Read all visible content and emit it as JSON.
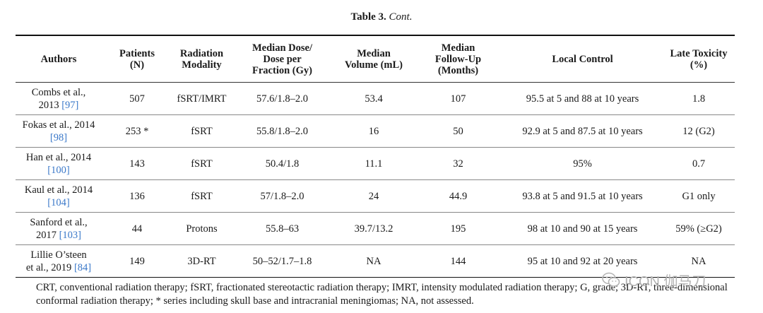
{
  "caption": {
    "label": "Table 3.",
    "cont": "Cont."
  },
  "header": {
    "authors": [
      "Authors"
    ],
    "patients": [
      "Patients",
      "(N)"
    ],
    "modality": [
      "Radiation",
      "Modality"
    ],
    "dose": [
      "Median Dose/",
      "Dose per",
      "Fraction (Gy)"
    ],
    "volume": [
      "Median",
      "Volume (mL)"
    ],
    "followup": [
      "Median",
      "Follow-Up",
      "(Months)"
    ],
    "control": [
      "Local Control"
    ],
    "toxicity": [
      "Late Toxicity",
      "(%)"
    ]
  },
  "rows": [
    {
      "author": [
        "Combs et al.,",
        "2013 "
      ],
      "ref": "[97]",
      "patients": "507",
      "modality": "fSRT/IMRT",
      "dose": "57.6/1.8–2.0",
      "volume": "53.4",
      "followup": "107",
      "control": "95.5 at 5 and 88 at 10 years",
      "toxicity": "1.8"
    },
    {
      "author": [
        "Fokas et al., 2014",
        ""
      ],
      "ref": "[98]",
      "patients": "253 *",
      "modality": "fSRT",
      "dose": "55.8/1.8–2.0",
      "volume": "16",
      "followup": "50",
      "control": "92.9 at 5 and 87.5 at 10 years",
      "toxicity": "12 (G2)"
    },
    {
      "author": [
        "Han et al., 2014",
        ""
      ],
      "ref": "[100]",
      "patients": "143",
      "modality": "fSRT",
      "dose": "50.4/1.8",
      "volume": "11.1",
      "followup": "32",
      "control": "95%",
      "toxicity": "0.7"
    },
    {
      "author": [
        "Kaul et al., 2014",
        ""
      ],
      "ref": "[104]",
      "patients": "136",
      "modality": "fSRT",
      "dose": "57/1.8–2.0",
      "volume": "24",
      "followup": "44.9",
      "control": "93.8 at 5 and 91.5 at 10 years",
      "toxicity": "G1 only"
    },
    {
      "author": [
        "Sanford et al.,",
        "2017 "
      ],
      "ref": "[103]",
      "patients": "44",
      "modality": "Protons",
      "dose": "55.8–63",
      "volume": "39.7/13.2",
      "followup": "195",
      "control": "98 at 10 and 90 at 15 years",
      "toxicity": "59% (≥G2)"
    },
    {
      "author": [
        "Lillie O’steen",
        "et al., 2019 "
      ],
      "ref": "[84]",
      "patients": "149",
      "modality": "3D-RT",
      "dose": "50–52/1.7–1.8",
      "volume": "NA",
      "followup": "144",
      "control": "95 at 10 and 92 at 20 years",
      "toxicity": "NA"
    }
  ],
  "footnote": "CRT, conventional radiation therapy; fSRT, fractionated stereotactic radiation therapy; IMRT, intensity modulated radiation therapy; G, grade; 3D-RT, three-dimensional conformal radiation therapy; * series including skull base and intracranial meningiomas; NA, not assessed.",
  "watermark": {
    "text": "ICON 伽马刀",
    "icon": "wechat-icon"
  },
  "colors": {
    "reference_link": "#3a78c9"
  }
}
